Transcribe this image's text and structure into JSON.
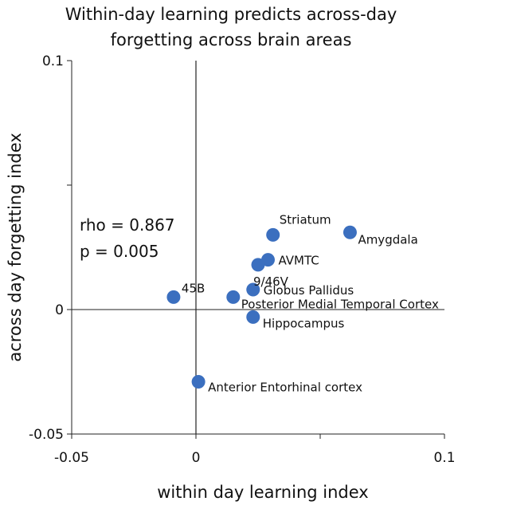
{
  "chart_data": {
    "type": "scatter",
    "title_lines": [
      "Within-day learning  predicts across-day",
      "forgetting across brain areas"
    ],
    "xlabel": "within day learning index",
    "ylabel": "across day forgetting index",
    "xlim": [
      -0.05,
      0.1
    ],
    "ylim": [
      -0.05,
      0.1
    ],
    "x_ticks": [
      -0.05,
      0,
      0.05,
      0.1
    ],
    "x_tick_labels": [
      "-0.05",
      "0",
      "",
      "0.1"
    ],
    "y_ticks": [
      -0.05,
      0,
      0.05,
      0.1
    ],
    "y_tick_labels": [
      "-0.05",
      "0",
      "",
      "0.1"
    ],
    "grid": false,
    "marker_color": "#3b6fbf",
    "annotations": [
      "rho = 0.867",
      "p = 0.005"
    ],
    "points": [
      {
        "label": "Amygdala",
        "x": 0.062,
        "y": 0.031
      },
      {
        "label": "Striatum",
        "x": 0.031,
        "y": 0.03
      },
      {
        "label": "AVMTC",
        "x": 0.029,
        "y": 0.02
      },
      {
        "label": "9/46V",
        "x": 0.025,
        "y": 0.018
      },
      {
        "label": "Globus Pallidus",
        "x": 0.023,
        "y": 0.008
      },
      {
        "label": "45B",
        "x": -0.009,
        "y": 0.005
      },
      {
        "label": "Posterior Medial Temporal Cortex",
        "x": 0.015,
        "y": 0.005
      },
      {
        "label": "Hippocampus",
        "x": 0.023,
        "y": -0.003
      },
      {
        "label": "Anterior Entorhinal cortex",
        "x": 0.001,
        "y": -0.029
      }
    ]
  }
}
